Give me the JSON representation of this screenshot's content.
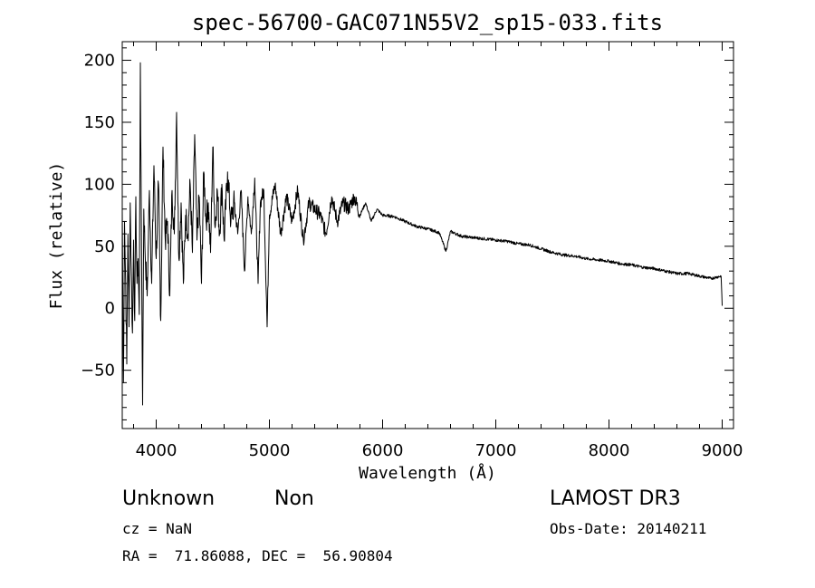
{
  "chart_data": {
    "type": "line",
    "title": "spec-56700-GAC071N55V2_sp15-033.fits",
    "xlabel": "Wavelength (Å)",
    "ylabel": "Flux (relative)",
    "xlim": [
      3700,
      9100
    ],
    "ylim": [
      -97,
      215
    ],
    "xticks": [
      4000,
      5000,
      6000,
      7000,
      8000,
      9000
    ],
    "yticks": [
      -50,
      0,
      50,
      100,
      150,
      200
    ],
    "series": [
      {
        "name": "flux",
        "x": [
          3700,
          3710,
          3720,
          3730,
          3740,
          3750,
          3760,
          3770,
          3780,
          3790,
          3800,
          3810,
          3820,
          3830,
          3840,
          3850,
          3860,
          3870,
          3880,
          3890,
          3900,
          3920,
          3940,
          3960,
          3980,
          4000,
          4020,
          4040,
          4060,
          4080,
          4100,
          4120,
          4140,
          4160,
          4180,
          4200,
          4220,
          4240,
          4260,
          4280,
          4300,
          4320,
          4340,
          4360,
          4380,
          4400,
          4420,
          4440,
          4460,
          4480,
          4500,
          4520,
          4540,
          4560,
          4580,
          4600,
          4630,
          4660,
          4690,
          4720,
          4750,
          4780,
          4810,
          4840,
          4870,
          4900,
          4920,
          4950,
          4980,
          5000,
          5050,
          5100,
          5150,
          5200,
          5250,
          5300,
          5350,
          5400,
          5450,
          5500,
          5550,
          5600,
          5650,
          5700,
          5750,
          5800,
          5850,
          5900,
          5950,
          6000,
          6100,
          6200,
          6300,
          6400,
          6500,
          6560,
          6600,
          6700,
          6800,
          6900,
          7000,
          7100,
          7200,
          7300,
          7400,
          7500,
          7600,
          7700,
          7800,
          7900,
          8000,
          8100,
          8200,
          8300,
          8400,
          8500,
          8600,
          8700,
          8800,
          8900,
          8990,
          9000
        ],
        "values": [
          80,
          -60,
          70,
          20,
          -45,
          60,
          -15,
          85,
          30,
          -20,
          55,
          -10,
          90,
          20,
          40,
          -5,
          198,
          45,
          -78,
          80,
          50,
          10,
          95,
          20,
          115,
          40,
          100,
          -10,
          130,
          55,
          70,
          10,
          95,
          60,
          158,
          40,
          85,
          20,
          75,
          60,
          100,
          45,
          140,
          55,
          90,
          20,
          110,
          70,
          85,
          45,
          130,
          65,
          95,
          60,
          100,
          55,
          110,
          70,
          85,
          60,
          95,
          30,
          90,
          60,
          105,
          20,
          85,
          95,
          -15,
          75,
          100,
          60,
          90,
          70,
          95,
          55,
          85,
          80,
          75,
          60,
          90,
          70,
          85,
          80,
          90,
          75,
          85,
          70,
          80,
          75,
          74,
          70,
          66,
          64,
          61,
          46,
          62,
          58,
          57,
          56,
          55,
          54,
          52,
          51,
          48,
          45,
          43,
          42,
          40,
          39,
          38,
          36,
          35,
          33,
          32,
          30,
          28,
          28,
          26,
          24,
          26,
          2
        ]
      }
    ]
  },
  "info": {
    "object_class": "Unknown",
    "subclass": "Non",
    "survey": "LAMOST DR3",
    "redshift_line": "cz = NaN",
    "obs_date_line": "Obs-Date: 20140211",
    "coords_line": "RA =  71.86088, DEC =  56.90804"
  }
}
